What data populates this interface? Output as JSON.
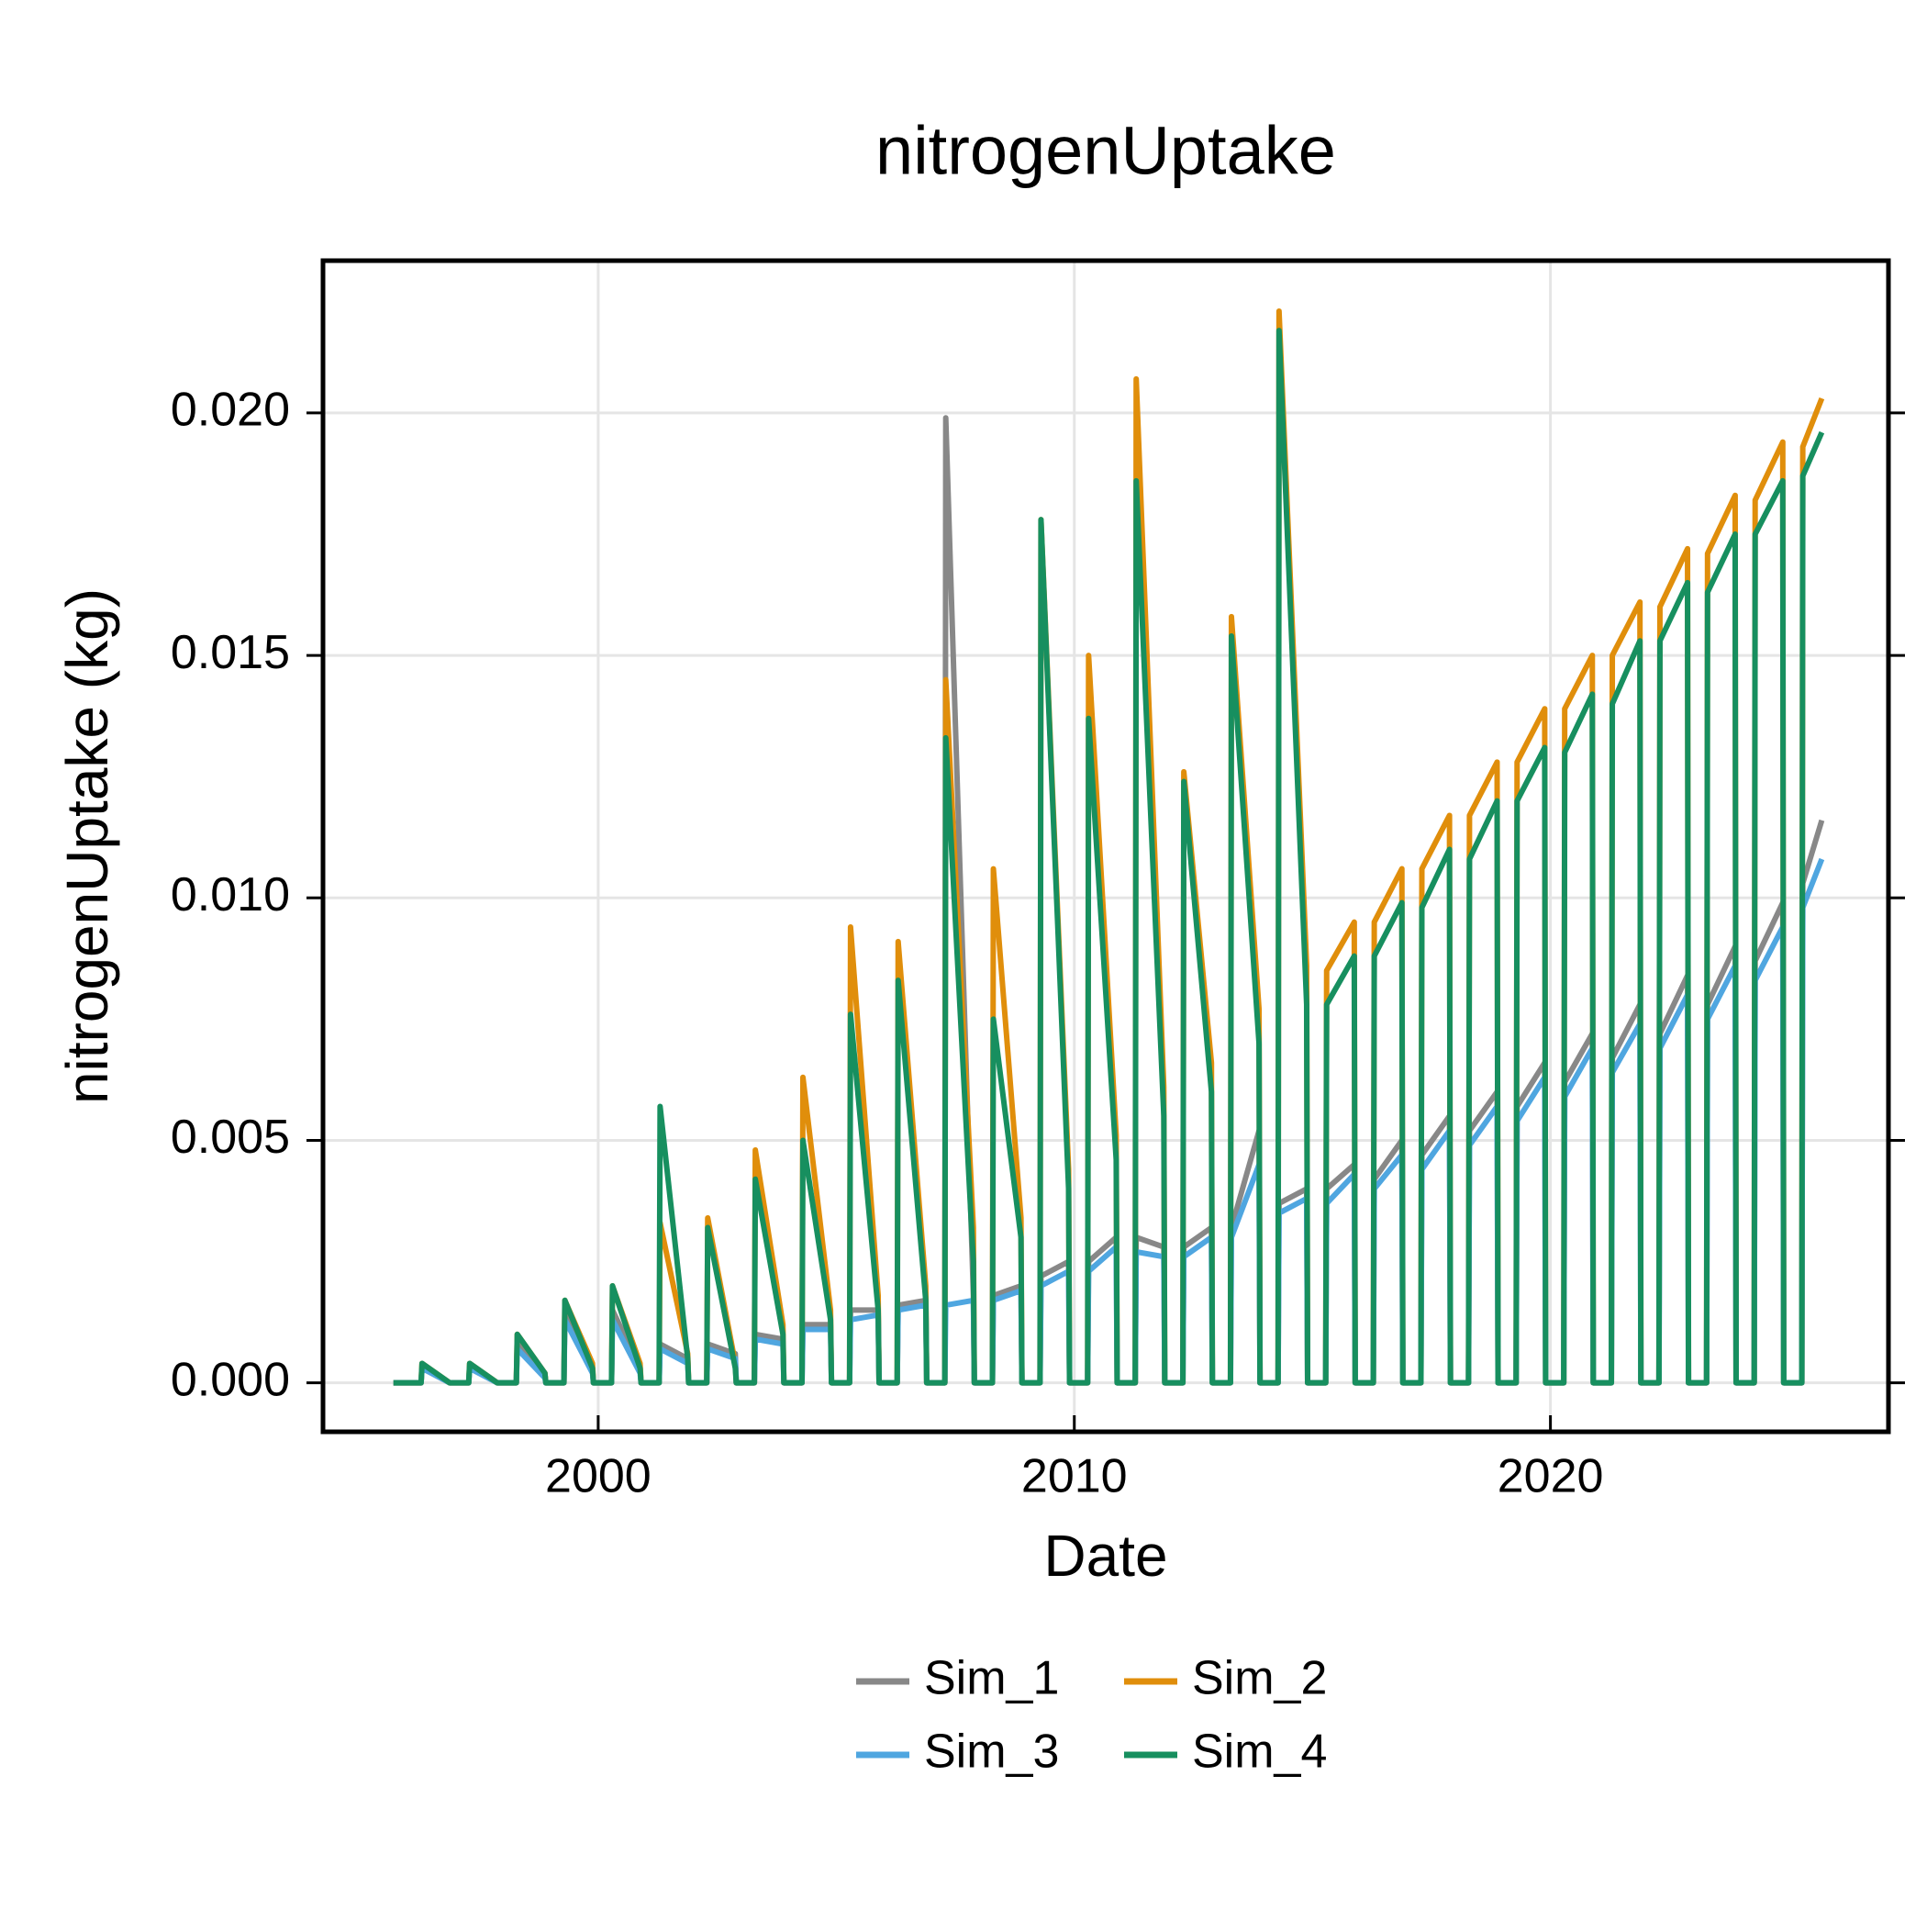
{
  "chart_data": {
    "type": "line",
    "title": "nitrogenUptake",
    "x_label": "Date",
    "y_label": "nitrogenUptake (kg)",
    "xlim": [
      1994.22,
      2027.1
    ],
    "xticks": [
      2000,
      2010,
      2020
    ],
    "ylim": [
      -0.00101,
      0.02314
    ],
    "yticks": [
      {
        "value": 0,
        "label": "0.000"
      },
      {
        "value": 0.005,
        "label": "0.005"
      },
      {
        "value": 0.01,
        "label": "0.010"
      },
      {
        "value": 0.015,
        "label": "0.015"
      },
      {
        "value": 0.02,
        "label": "0.020"
      }
    ],
    "grid": true,
    "legend": "bottom",
    "x": [
      1995.7,
      1996.28,
      1996.3,
      1996.88,
      1996.9,
      1997.28,
      1997.3,
      1997.88,
      1997.9,
      1998.28,
      1998.3,
      1998.88,
      1998.9,
      1999.28,
      1999.3,
      1999.88,
      1999.9,
      2000.28,
      2000.3,
      2000.88,
      2000.9,
      2001.28,
      2001.3,
      2001.88,
      2001.9,
      2002.28,
      2002.3,
      2002.88,
      2002.9,
      2003.28,
      2003.3,
      2003.88,
      2003.9,
      2004.28,
      2004.3,
      2004.88,
      2004.9,
      2005.28,
      2005.3,
      2005.88,
      2005.9,
      2006.28,
      2006.3,
      2006.88,
      2006.9,
      2007.28,
      2007.3,
      2007.88,
      2007.9,
      2008.28,
      2008.3,
      2008.88,
      2008.9,
      2009.28,
      2009.3,
      2009.88,
      2009.9,
      2010.28,
      2010.3,
      2010.88,
      2010.9,
      2011.28,
      2011.3,
      2011.88,
      2011.9,
      2012.28,
      2012.3,
      2012.88,
      2012.9,
      2013.28,
      2013.3,
      2013.88,
      2013.9,
      2014.28,
      2014.3,
      2014.88,
      2014.9,
      2015.28,
      2015.3,
      2015.88,
      2015.9,
      2016.28,
      2016.3,
      2016.88,
      2016.9,
      2017.28,
      2017.3,
      2017.88,
      2017.9,
      2018.28,
      2018.3,
      2018.88,
      2018.9,
      2019.28,
      2019.3,
      2019.88,
      2019.9,
      2020.28,
      2020.3,
      2020.88,
      2020.9,
      2021.28,
      2021.3,
      2021.88,
      2021.9,
      2022.28,
      2022.3,
      2022.88,
      2022.9,
      2023.28,
      2023.3,
      2023.88,
      2023.9,
      2024.28,
      2024.3,
      2024.88,
      2024.9,
      2025.28,
      2025.3,
      2025.7
    ],
    "series": [
      {
        "name": "Sim_1",
        "color": "#888888",
        "values": [
          0,
          0,
          0.0003,
          0,
          0,
          0,
          0.0003,
          0,
          0,
          0,
          0.0008,
          0.0002,
          0,
          0,
          0.0015,
          0.0003,
          0,
          0,
          0.0015,
          0.0003,
          0,
          0,
          0.0008,
          0.0005,
          0,
          0,
          0.0008,
          0.0006,
          0,
          0,
          0.001,
          0.0009,
          0,
          0,
          0.0012,
          0.0012,
          0,
          0,
          0.0015,
          0.0015,
          0,
          0,
          0.0016,
          0.0017,
          0,
          0,
          0.0199,
          0.0018,
          0,
          0,
          0.0018,
          0.002,
          0,
          0,
          0.0022,
          0.0025,
          0,
          0,
          0.0025,
          0.003,
          0,
          0,
          0.003,
          0.0028,
          0,
          0,
          0.0028,
          0.0032,
          0,
          0,
          0.0032,
          0.0052,
          0,
          0,
          0.0037,
          0.004,
          0,
          0,
          0.004,
          0.0045,
          0,
          0,
          0.0042,
          0.005,
          0,
          0,
          0.0047,
          0.0055,
          0,
          0,
          0.0052,
          0.006,
          0,
          0,
          0.0057,
          0.0066,
          0,
          0,
          0.0062,
          0.0072,
          0,
          0,
          0.0067,
          0.0078,
          0,
          0,
          0.0072,
          0.0084,
          0,
          0,
          0.0078,
          0.009,
          0,
          0,
          0.0087,
          0.0099,
          0,
          0,
          0.0103,
          0.0116
        ]
      },
      {
        "name": "Sim_2",
        "color": "#e08e0b",
        "values": [
          0,
          0,
          0.0004,
          0,
          0,
          0,
          0.0004,
          0,
          0,
          0,
          0.001,
          0.0002,
          0,
          0,
          0.0017,
          0.0004,
          0,
          0,
          0.002,
          0.0004,
          0,
          0,
          0.0033,
          0.0006,
          0,
          0,
          0.0034,
          0.0004,
          0,
          0,
          0.0048,
          0.0012,
          0,
          0,
          0.0063,
          0.0015,
          0,
          0,
          0.0094,
          0.0018,
          0,
          0,
          0.0091,
          0.002,
          0,
          0,
          0.0145,
          0.0032,
          0,
          0,
          0.0106,
          0.0034,
          0,
          0,
          0.0178,
          0.0044,
          0,
          0,
          0.015,
          0.0051,
          0,
          0,
          0.0207,
          0.0061,
          0,
          0,
          0.0126,
          0.0066,
          0,
          0,
          0.0158,
          0.0077,
          0,
          0,
          0.0221,
          0.0086,
          0,
          0,
          0.0085,
          0.0095,
          0,
          0,
          0.0095,
          0.0106,
          0,
          0,
          0.0106,
          0.0117,
          0,
          0,
          0.0117,
          0.0128,
          0,
          0,
          0.0128,
          0.0139,
          0,
          0,
          0.0139,
          0.015,
          0,
          0,
          0.015,
          0.0161,
          0,
          0,
          0.016,
          0.0172,
          0,
          0,
          0.0171,
          0.0183,
          0,
          0,
          0.0182,
          0.0194,
          0,
          0,
          0.0193,
          0.0203
        ]
      },
      {
        "name": "Sim_3",
        "color": "#4fa6e0",
        "values": [
          0,
          0,
          0.0003,
          0,
          0,
          0,
          0.0003,
          0,
          0,
          0,
          0.0007,
          0.0001,
          0,
          0,
          0.0013,
          0.0002,
          0,
          0,
          0.0013,
          0.0002,
          0,
          0,
          0.0007,
          0.0004,
          0,
          0,
          0.0007,
          0.0005,
          0,
          0,
          0.0009,
          0.0008,
          0,
          0,
          0.0011,
          0.0011,
          0,
          0,
          0.0013,
          0.0014,
          0,
          0,
          0.0015,
          0.0016,
          0,
          0,
          0.0016,
          0.0017,
          0,
          0,
          0.0017,
          0.0019,
          0,
          0,
          0.002,
          0.0023,
          0,
          0,
          0.0023,
          0.0028,
          0,
          0,
          0.0027,
          0.0026,
          0,
          0,
          0.0026,
          0.003,
          0,
          0,
          0.003,
          0.0045,
          0,
          0,
          0.0035,
          0.0038,
          0,
          0,
          0.0037,
          0.0043,
          0,
          0,
          0.004,
          0.0047,
          0,
          0,
          0.0044,
          0.0052,
          0,
          0,
          0.0049,
          0.0057,
          0,
          0,
          0.0054,
          0.0063,
          0,
          0,
          0.0059,
          0.0069,
          0,
          0,
          0.0064,
          0.0074,
          0,
          0,
          0.0069,
          0.008,
          0,
          0,
          0.0075,
          0.0086,
          0,
          0,
          0.0083,
          0.0094,
          0,
          0,
          0.0098,
          0.0108
        ]
      },
      {
        "name": "Sim_4",
        "color": "#178f5f",
        "values": [
          0,
          0,
          0.0004,
          0,
          0,
          0,
          0.0004,
          0,
          0,
          0,
          0.001,
          0.0002,
          0,
          0,
          0.0017,
          0.0003,
          0,
          0,
          0.002,
          0.0003,
          0,
          0,
          0.0057,
          0.0005,
          0,
          0,
          0.0032,
          0.0003,
          0,
          0,
          0.0042,
          0.001,
          0,
          0,
          0.005,
          0.0013,
          0,
          0,
          0.0076,
          0.0015,
          0,
          0,
          0.0083,
          0.0017,
          0,
          0,
          0.0133,
          0.0025,
          0,
          0,
          0.0075,
          0.003,
          0,
          0,
          0.0178,
          0.004,
          0,
          0,
          0.0137,
          0.0046,
          0,
          0,
          0.0186,
          0.0055,
          0,
          0,
          0.0124,
          0.006,
          0,
          0,
          0.0154,
          0.007,
          0,
          0,
          0.0217,
          0.0078,
          0,
          0,
          0.0078,
          0.0088,
          0,
          0,
          0.0088,
          0.0099,
          0,
          0,
          0.0098,
          0.011,
          0,
          0,
          0.0108,
          0.012,
          0,
          0,
          0.012,
          0.0131,
          0,
          0,
          0.013,
          0.0142,
          0,
          0,
          0.014,
          0.0153,
          0,
          0,
          0.0153,
          0.0165,
          0,
          0,
          0.0163,
          0.0175,
          0,
          0,
          0.0175,
          0.0186,
          0,
          0,
          0.0187,
          0.0196
        ]
      }
    ]
  }
}
